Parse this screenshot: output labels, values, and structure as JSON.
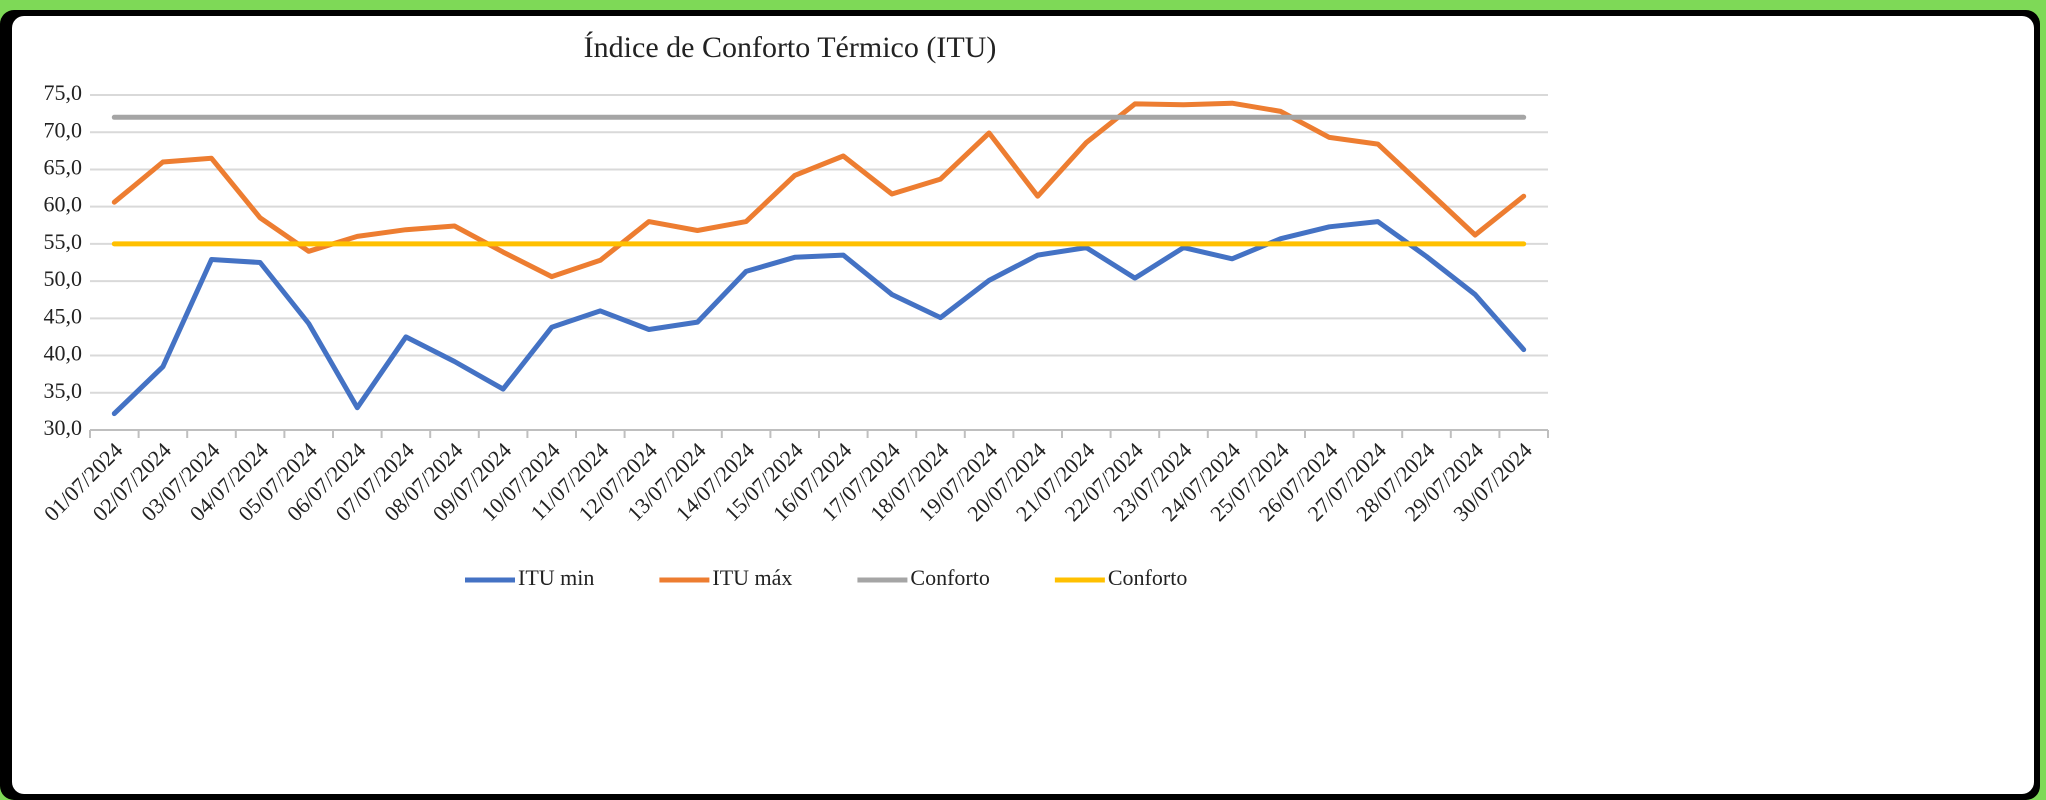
{
  "chart_data": {
    "type": "line",
    "title": "Índice de Conforto Térmico (ITU)",
    "categories": [
      "01/07/2024",
      "02/07/2024",
      "03/07/2024",
      "04/07/2024",
      "05/07/2024",
      "06/07/2024",
      "07/07/2024",
      "08/07/2024",
      "09/07/2024",
      "10/07/2024",
      "11/07/2024",
      "12/07/2024",
      "13/07/2024",
      "14/07/2024",
      "15/07/2024",
      "16/07/2024",
      "17/07/2024",
      "18/07/2024",
      "19/07/2024",
      "20/07/2024",
      "21/07/2024",
      "22/07/2024",
      "23/07/2024",
      "24/07/2024",
      "25/07/2024",
      "26/07/2024",
      "27/07/2024",
      "28/07/2024",
      "29/07/2024",
      "30/07/2024"
    ],
    "series": [
      {
        "name": "ITU min",
        "color": "#4472c4",
        "values": [
          32.2,
          38.5,
          52.9,
          52.5,
          44.3,
          33.0,
          42.5,
          39.2,
          35.5,
          43.8,
          46.0,
          43.5,
          44.5,
          51.3,
          53.2,
          53.5,
          48.2,
          45.1,
          50.1,
          53.5,
          54.5,
          50.4,
          54.5,
          53.0,
          55.7,
          57.3,
          58.0,
          53.3,
          48.2,
          40.8
        ]
      },
      {
        "name": "ITU máx",
        "color": "#ed7d31",
        "values": [
          60.6,
          66.0,
          66.5,
          58.5,
          54.0,
          56.0,
          56.9,
          57.4,
          53.9,
          50.6,
          52.8,
          58.0,
          56.8,
          58.0,
          64.2,
          66.8,
          61.7,
          63.7,
          69.9,
          61.4,
          68.6,
          73.8,
          73.7,
          73.9,
          72.8,
          69.3,
          68.4,
          62.3,
          56.2,
          61.4
        ]
      },
      {
        "name": "Conforto",
        "color": "#a5a5a5",
        "values": [
          72,
          72,
          72,
          72,
          72,
          72,
          72,
          72,
          72,
          72,
          72,
          72,
          72,
          72,
          72,
          72,
          72,
          72,
          72,
          72,
          72,
          72,
          72,
          72,
          72,
          72,
          72,
          72,
          72,
          72
        ]
      },
      {
        "name": "Conforto",
        "color": "#ffc000",
        "values": [
          55,
          55,
          55,
          55,
          55,
          55,
          55,
          55,
          55,
          55,
          55,
          55,
          55,
          55,
          55,
          55,
          55,
          55,
          55,
          55,
          55,
          55,
          55,
          55,
          55,
          55,
          55,
          55,
          55,
          55
        ]
      }
    ],
    "ylim": [
      30,
      75
    ],
    "yticks": [
      {
        "value": 30,
        "label": "30,0"
      },
      {
        "value": 35,
        "label": "35,0"
      },
      {
        "value": 40,
        "label": "40,0"
      },
      {
        "value": 45,
        "label": "45,0"
      },
      {
        "value": 50,
        "label": "50,0"
      },
      {
        "value": 55,
        "label": "55,0"
      },
      {
        "value": 60,
        "label": "60,0"
      },
      {
        "value": 65,
        "label": "65,0"
      },
      {
        "value": 70,
        "label": "70,0"
      },
      {
        "value": 75,
        "label": "75,0"
      }
    ],
    "grid": true,
    "legend": "bottom"
  }
}
